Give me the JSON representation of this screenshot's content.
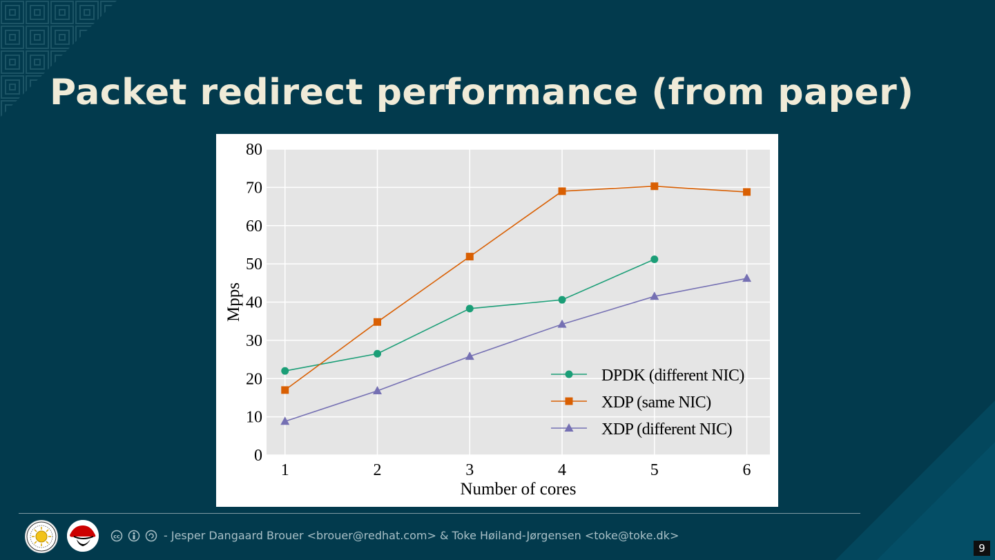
{
  "slide": {
    "title": "Packet redirect performance (from paper)",
    "footer_text": "- Jesper Dangaard Brouer <brouer@redhat.com> & Toke Høiland-Jørgensen <toke@toke.dk>",
    "page_number": "9",
    "background_color": "#023a4d",
    "title_color": "#f0ebd8"
  },
  "icons": {
    "logo_left": "university-seal-icon",
    "logo_right": "redhat-shadowman-icon",
    "license": "creative-commons-by-sa-icon"
  },
  "chart_data": {
    "type": "line",
    "title": "",
    "xlabel": "Number of cores",
    "ylabel": "Mpps",
    "x": [
      1,
      2,
      3,
      4,
      5,
      6
    ],
    "xlim": [
      0.8,
      6.25
    ],
    "ylim": [
      0,
      80
    ],
    "yticks": [
      0,
      10,
      20,
      30,
      40,
      50,
      60,
      70,
      80
    ],
    "grid": true,
    "legend_position": "bottom-right",
    "series": [
      {
        "name": "DPDK (different NIC)",
        "color": "#1b9e77",
        "marker": "circle",
        "values": [
          22,
          26.5,
          38.3,
          40.6,
          51.2,
          null
        ]
      },
      {
        "name": "XDP (same NIC)",
        "color": "#d95f02",
        "marker": "square",
        "values": [
          17,
          34.8,
          51.9,
          69,
          70.3,
          68.8
        ]
      },
      {
        "name": "XDP (different NIC)",
        "color": "#7570b3",
        "marker": "triangle",
        "values": [
          8.8,
          16.8,
          25.8,
          34.2,
          41.5,
          46.2
        ]
      }
    ]
  }
}
